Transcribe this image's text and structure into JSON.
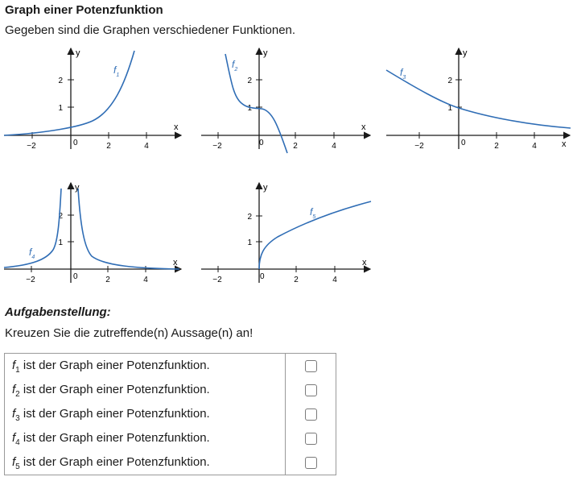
{
  "header": {
    "title": "Graph einer Potenzfunktion",
    "intro": "Gegeben sind die Graphen verschiedener Funktionen."
  },
  "graphs": [
    {
      "label": "f",
      "index": "1",
      "x_axis_label": "x",
      "y_axis_label": "y",
      "origin_label": "0",
      "x_ticks": [
        "−2",
        "2",
        "4"
      ],
      "y_ticks": [
        "1",
        "2"
      ]
    },
    {
      "label": "f",
      "index": "2",
      "x_axis_label": "x",
      "y_axis_label": "y",
      "origin_label": "0",
      "x_ticks": [
        "−2",
        "2",
        "4"
      ],
      "y_ticks": [
        "1",
        "2"
      ]
    },
    {
      "label": "f",
      "index": "3",
      "x_axis_label": "x",
      "y_axis_label": "y",
      "origin_label": "0",
      "x_ticks": [
        "−2",
        "2",
        "4"
      ],
      "y_ticks": [
        "1",
        "2"
      ]
    },
    {
      "label": "f",
      "index": "4",
      "x_axis_label": "x",
      "y_axis_label": "y",
      "origin_label": "0",
      "x_ticks": [
        "−2",
        "2",
        "4"
      ],
      "y_ticks": [
        "1",
        "2"
      ]
    },
    {
      "label": "f",
      "index": "5",
      "x_axis_label": "x",
      "y_axis_label": "y",
      "origin_label": "0",
      "x_ticks": [
        "−2",
        "2",
        "4"
      ],
      "y_ticks": [
        "1",
        "2"
      ]
    }
  ],
  "task": {
    "heading": "Aufgabenstellung:",
    "instruction": "Kreuzen Sie die zutreffende(n) Aussage(n) an!"
  },
  "options": [
    {
      "fn": "f",
      "sub": "1",
      "text": " ist der Graph einer Potenzfunktion.",
      "checked": false
    },
    {
      "fn": "f",
      "sub": "2",
      "text": " ist der Graph einer Potenzfunktion.",
      "checked": false
    },
    {
      "fn": "f",
      "sub": "3",
      "text": " ist der Graph einer Potenzfunktion.",
      "checked": false
    },
    {
      "fn": "f",
      "sub": "4",
      "text": " ist der Graph einer Potenzfunktion.",
      "checked": false
    },
    {
      "fn": "f",
      "sub": "5",
      "text": " ist der Graph einer Potenzfunktion.",
      "checked": false
    }
  ],
  "colors": {
    "curve": "#2f6db5",
    "axis": "#1a1a1a",
    "border": "#9a9a9a"
  }
}
